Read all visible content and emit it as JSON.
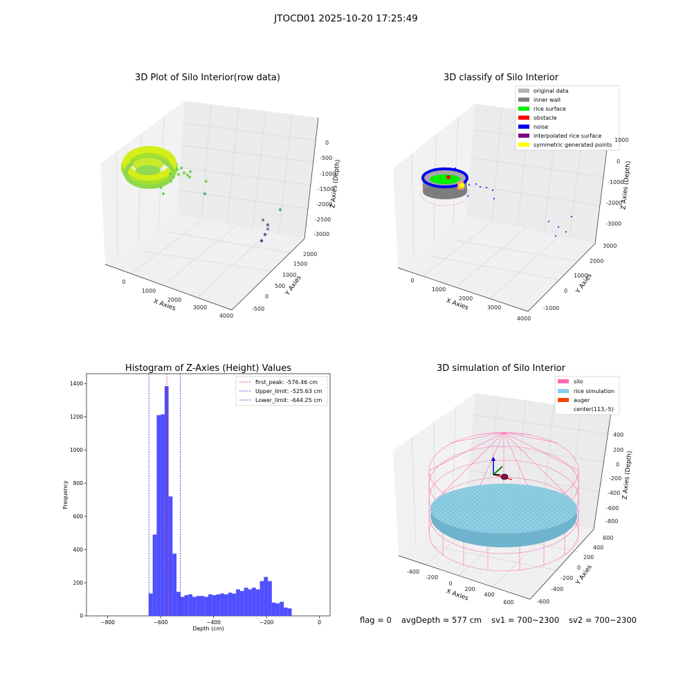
{
  "suptitle": "JTOCD01 2025-10-20 17:25:49",
  "status": {
    "flag": "flag = 0",
    "avg_depth": "avgDepth = 577 cm",
    "sv1": "sv1 = 700~2300",
    "sv2": "sv2 = 700~2300"
  },
  "chart_data": [
    {
      "type": "scatter",
      "title": "3D Plot of Silo Interior(row data)",
      "xlabel": "X Axies",
      "ylabel": "Y Axies",
      "zlabel": "Z Axies (Depth)",
      "x_ticks": [
        "0",
        "1000",
        "2000",
        "3000",
        "4000"
      ],
      "y_ticks": [
        "-500",
        "0",
        "500",
        "1000",
        "1500",
        "2000"
      ],
      "z_ticks": [
        "0",
        "-500",
        "-1000",
        "-1500",
        "-2000",
        "-2500",
        "-3000"
      ],
      "grid": true,
      "colors": {
        "ring": "#b6e62a",
        "ring_inner": "#7fd64a",
        "scatter": "#6fcf5c",
        "far": "#8a5ea0"
      }
    },
    {
      "type": "scatter",
      "title": "3D classify of Silo Interior",
      "xlabel": "X Axies",
      "ylabel": "Y Axies",
      "zlabel": "Z Axies (Depth)",
      "x_ticks": [
        "0",
        "1000",
        "2000",
        "3000",
        "4000"
      ],
      "y_ticks": [
        "-1000",
        "0",
        "1000",
        "2000",
        "3000"
      ],
      "z_ticks": [
        "1000",
        "0",
        "-1000",
        "-2000",
        "-3000"
      ],
      "legend_position": "top-right",
      "legend": [
        {
          "label": "original data",
          "color": "#b3b3b3"
        },
        {
          "label": "inner wall",
          "color": "#808080"
        },
        {
          "label": "rice surface",
          "color": "#00ee00"
        },
        {
          "label": "obstacle",
          "color": "#ff0000"
        },
        {
          "label": "noise",
          "color": "#0000ee"
        },
        {
          "label": "interpolated rice surface",
          "color": "#800080"
        },
        {
          "label": "symmetric generated points",
          "color": "#ffff00"
        }
      ],
      "grid": true
    },
    {
      "type": "bar",
      "title": "Histogram of Z-Axies (Height) Values",
      "xlabel": "Depth (cm)",
      "ylabel": "Frequency",
      "xlim": [
        -880,
        40
      ],
      "ylim": [
        0,
        1460
      ],
      "x_ticks": [
        -800,
        -600,
        -400,
        -200,
        0
      ],
      "y_ticks": [
        0,
        200,
        400,
        600,
        800,
        1000,
        1200,
        1400
      ],
      "bin_start": -645,
      "bin_width": 15,
      "values": [
        135,
        490,
        1210,
        1215,
        1385,
        720,
        375,
        145,
        115,
        125,
        130,
        115,
        120,
        120,
        115,
        130,
        125,
        130,
        135,
        130,
        140,
        135,
        160,
        150,
        170,
        160,
        170,
        160,
        210,
        235,
        210,
        80,
        75,
        85,
        50,
        45
      ],
      "bar_color": "#4f4fff",
      "lines": [
        {
          "label": "first_peak: -576.46 cm",
          "x": -576.46,
          "color": "#e31a1c"
        },
        {
          "label": "Upper_limit: -525.63 cm",
          "x": -525.63,
          "color": "#2222cc"
        },
        {
          "label": "Lower_limit: -644.25 cm",
          "x": -644.25,
          "color": "#2222cc"
        }
      ],
      "legend_position": "top-right"
    },
    {
      "type": "scatter",
      "title": "3D simulation of Silo Interior",
      "xlabel": "X Axies",
      "ylabel": "Y Axies",
      "zlabel": "Z Axies (Depth)",
      "x_ticks": [
        "-400",
        "-200",
        "0",
        "200",
        "400",
        "600"
      ],
      "y_ticks": [
        "-600",
        "-400",
        "-200",
        "0",
        "200",
        "400",
        "600"
      ],
      "z_ticks": [
        "400",
        "200",
        "0",
        "-200",
        "-400",
        "-600",
        "-800"
      ],
      "legend_position": "top-right",
      "legend": [
        {
          "label": "silo",
          "color": "#ff69b4"
        },
        {
          "label": "rice simulation",
          "color": "#87ceeb"
        },
        {
          "label": "auger",
          "color": "#ff4500"
        },
        {
          "label": "center(113,-5)",
          "color": ""
        }
      ],
      "grid": true
    }
  ]
}
